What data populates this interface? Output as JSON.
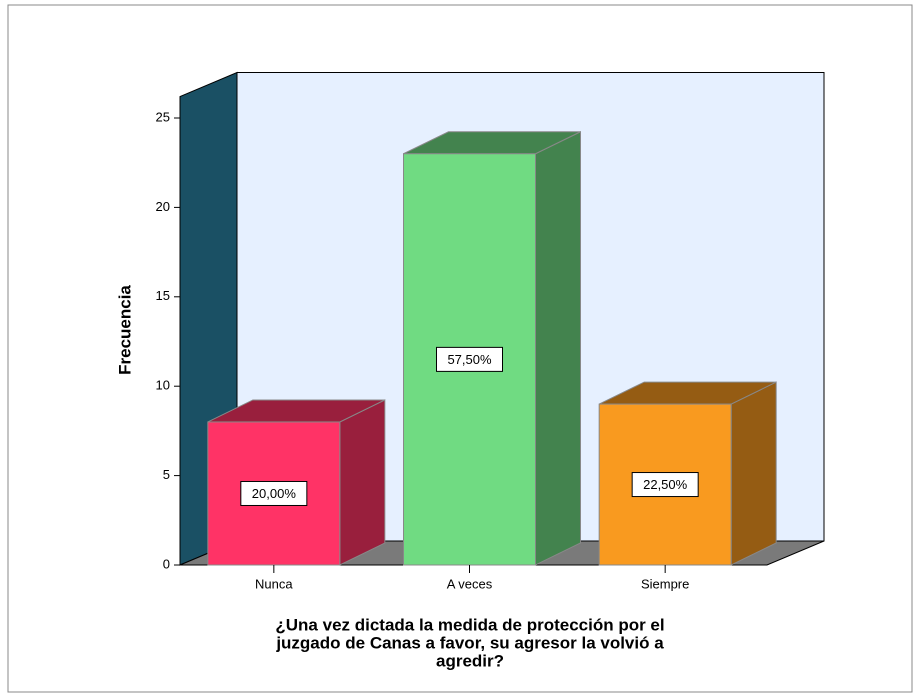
{
  "chart_data": {
    "type": "bar3d",
    "ylabel": "Frecuencia",
    "xlabel": [
      "¿Una vez  dictada la medida de protección por el",
      "juzgado de Canas a favor, su agresor la volvió a",
      "agredir?"
    ],
    "categories": [
      "Nunca",
      "A veces",
      "Siempre"
    ],
    "values": [
      8,
      23,
      9
    ],
    "percent_labels": [
      "20,00%",
      "57,50%",
      "22,50%"
    ],
    "colors": [
      "#ff3366",
      "#70db82",
      "#f99a1f"
    ],
    "ylim": [
      0,
      26.2
    ],
    "yticks": [
      0,
      5,
      10,
      15,
      20,
      25
    ]
  }
}
